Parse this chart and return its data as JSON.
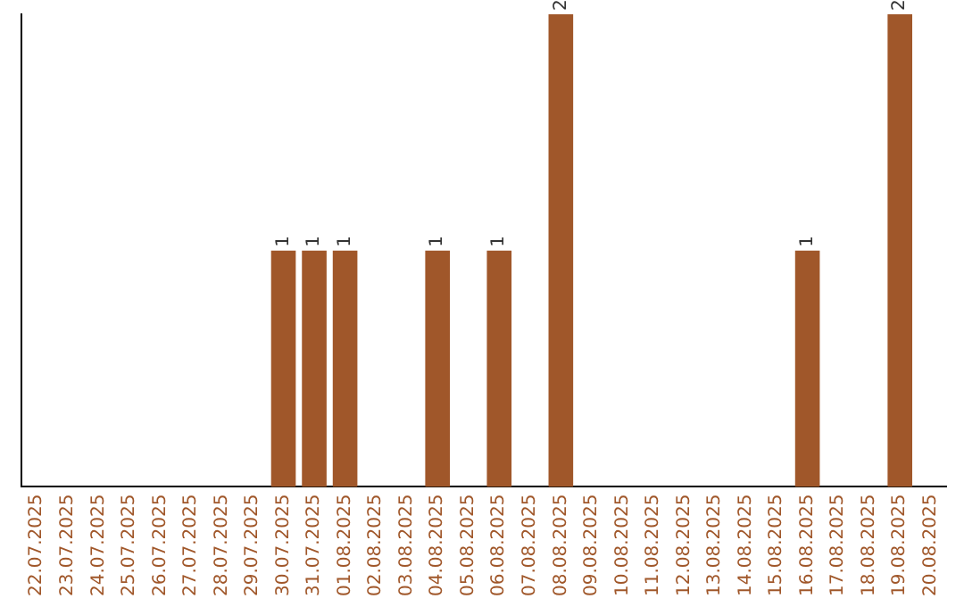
{
  "chart_data": {
    "type": "bar",
    "categories": [
      "22.07.2025",
      "23.07.2025",
      "24.07.2025",
      "25.07.2025",
      "26.07.2025",
      "27.07.2025",
      "28.07.2025",
      "29.07.2025",
      "30.07.2025",
      "31.07.2025",
      "01.08.2025",
      "02.08.2025",
      "03.08.2025",
      "04.08.2025",
      "05.08.2025",
      "06.08.2025",
      "07.08.2025",
      "08.08.2025",
      "09.08.2025",
      "10.08.2025",
      "11.08.2025",
      "12.08.2025",
      "13.08.2025",
      "14.08.2025",
      "15.08.2025",
      "16.08.2025",
      "17.08.2025",
      "18.08.2025",
      "19.08.2025",
      "20.08.2025"
    ],
    "values": [
      0,
      0,
      0,
      0,
      0,
      0,
      0,
      0,
      1,
      1,
      1,
      0,
      0,
      1,
      0,
      1,
      0,
      2,
      0,
      0,
      0,
      0,
      0,
      0,
      0,
      1,
      0,
      0,
      2,
      0
    ],
    "value_labels": [
      null,
      null,
      null,
      null,
      null,
      null,
      null,
      null,
      "1",
      "1",
      "1",
      null,
      null,
      "1",
      null,
      "1",
      null,
      "2",
      null,
      null,
      null,
      null,
      null,
      null,
      null,
      "1",
      null,
      null,
      "2",
      null
    ],
    "color": "#a0572a",
    "grid": false,
    "legend": false
  }
}
